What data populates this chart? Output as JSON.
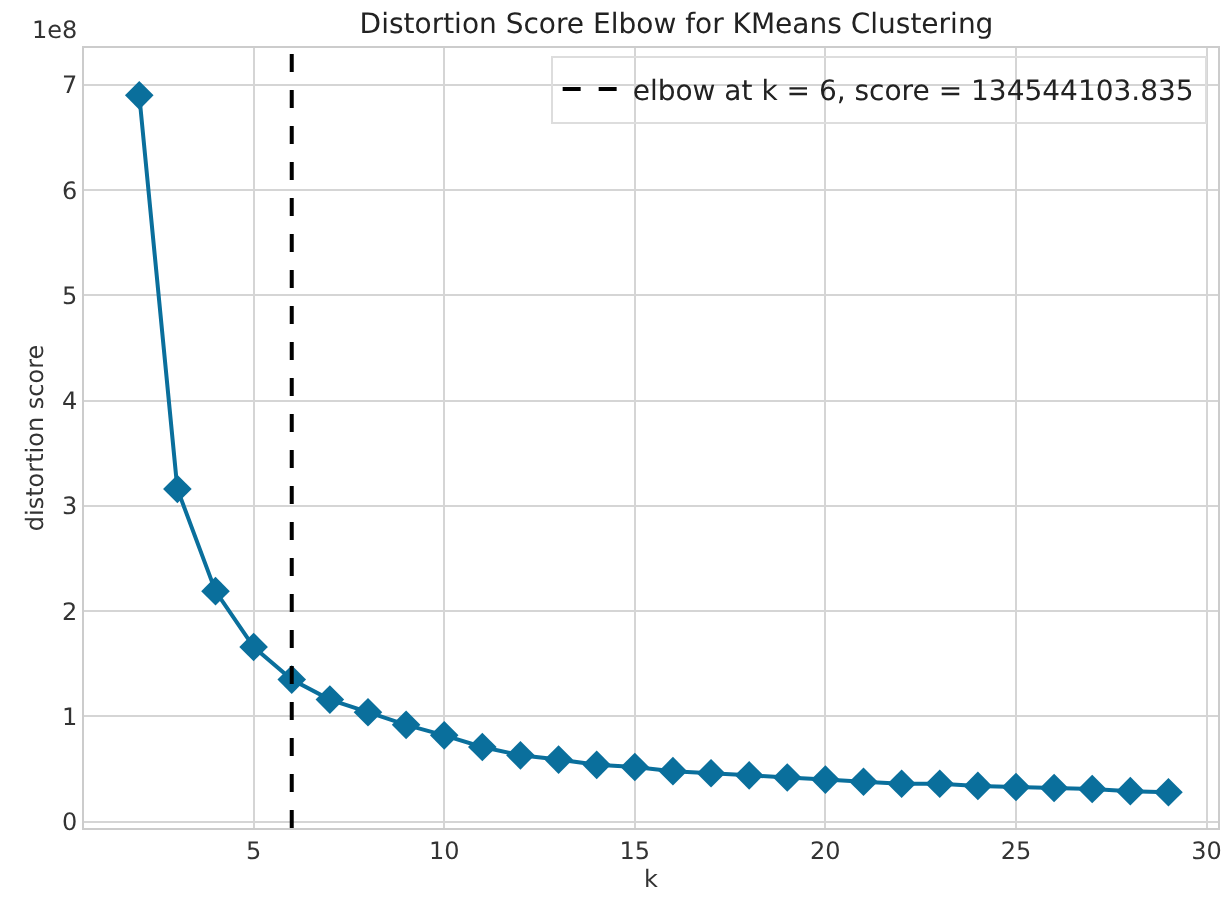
{
  "chart_data": {
    "type": "line",
    "title": "Distortion Score Elbow for KMeans Clustering",
    "xlabel": "k",
    "ylabel": "distortion score",
    "annotations": [
      "1e8"
    ],
    "x": [
      2,
      3,
      4,
      5,
      6,
      7,
      8,
      9,
      10,
      11,
      12,
      13,
      14,
      15,
      16,
      17,
      18,
      19,
      20,
      21,
      22,
      23,
      24,
      25,
      26,
      27,
      28,
      29
    ],
    "series": [
      {
        "color": "#0a6f9c",
        "values": [
          6.9,
          3.16,
          2.19,
          1.66,
          1.35,
          1.16,
          1.04,
          0.92,
          0.82,
          0.71,
          0.63,
          0.59,
          0.54,
          0.52,
          0.48,
          0.46,
          0.44,
          0.42,
          0.4,
          0.38,
          0.36,
          0.36,
          0.34,
          0.33,
          0.32,
          0.31,
          0.29,
          0.28
        ]
      }
    ],
    "xlim": [
      0.55,
      30.3
    ],
    "xticks": [
      5,
      10,
      15,
      20,
      25,
      30
    ],
    "ylim": [
      -0.06,
      7.35
    ],
    "yticks": [
      0,
      1,
      2,
      3,
      4,
      5,
      6,
      7
    ],
    "ref_lines": [
      {
        "axis": "x",
        "value": 6,
        "label": "elbow at k = 6, score = 134544103.835",
        "color": "#000000",
        "line_style": "dashed"
      }
    ],
    "grid": true,
    "legend": "top right",
    "marker": "diamond",
    "line_style": "solid"
  }
}
